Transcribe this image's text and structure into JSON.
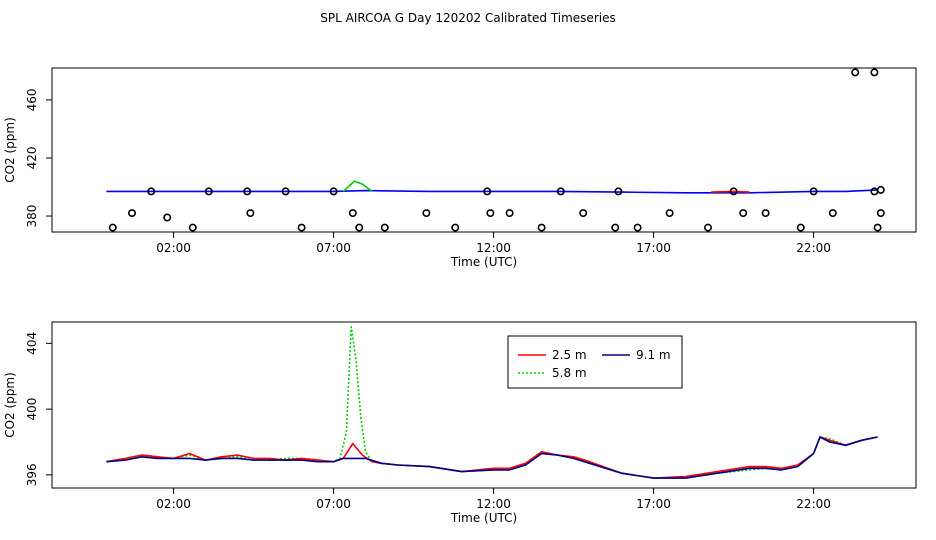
{
  "title": "SPL AIRCOA G  Day 120202  Calibrated Timeseries",
  "chart_data": [
    {
      "type": "line",
      "xlabel": "Time (UTC)",
      "ylabel": "CO2 (ppm)",
      "xlim": [
        -1.8,
        25.2
      ],
      "ylim": [
        369,
        482
      ],
      "x_ticks": [
        2,
        7,
        12,
        17,
        22
      ],
      "x_tick_labels": [
        "02:00",
        "07:00",
        "12:00",
        "17:00",
        "22:00"
      ],
      "y_ticks": [
        380,
        420,
        460
      ],
      "y_tick_labels": [
        "380",
        "420",
        "460"
      ],
      "grid": false,
      "series": [
        {
          "color": "#0000ff",
          "x": [
            -0.1,
            1.0,
            3.0,
            7.0,
            8.0,
            10.0,
            12.0,
            14.0,
            16.0,
            18.0,
            20.0,
            22.0,
            23.0,
            24.0
          ],
          "y": [
            397,
            397,
            397,
            397,
            397.5,
            397,
            397,
            397,
            396.5,
            396,
            396,
            397,
            397,
            398
          ]
        },
        {
          "color": "#00cc00",
          "x": [
            7.3,
            7.65,
            7.9,
            8.2
          ],
          "y": [
            397,
            404,
            402,
            397
          ]
        },
        {
          "color": "#ff0000",
          "x": [
            18.8,
            19.5,
            20.0
          ],
          "y": [
            396.5,
            397,
            396.5
          ]
        }
      ],
      "markers": {
        "shape": "open-circle",
        "color": "#000000",
        "x": [
          0.1,
          0.7,
          1.3,
          1.8,
          2.6,
          3.1,
          4.3,
          4.4,
          5.5,
          6.0,
          7.0,
          7.6,
          7.8,
          8.6,
          9.9,
          10.8,
          11.8,
          11.9,
          12.5,
          13.5,
          14.1,
          14.8,
          15.8,
          15.9,
          16.5,
          17.5,
          18.7,
          19.5,
          19.8,
          20.5,
          21.6,
          22.0,
          22.6,
          23.3,
          23.9,
          23.9,
          24.0,
          24.1,
          24.1
        ],
        "y": [
          372,
          382,
          397,
          379,
          372,
          397,
          397,
          382,
          397,
          372,
          397,
          382,
          372,
          372,
          382,
          372,
          397,
          382,
          382,
          372,
          397,
          382,
          372,
          397,
          372,
          382,
          372,
          397,
          382,
          382,
          372,
          397,
          382,
          479,
          479,
          397,
          372,
          382,
          398
        ]
      }
    },
    {
      "type": "line",
      "xlabel": "Time (UTC)",
      "ylabel": "CO2 (ppm)",
      "xlim": [
        -1.8,
        25.2
      ],
      "ylim": [
        395.2,
        405.3
      ],
      "x_ticks": [
        2,
        7,
        12,
        17,
        22
      ],
      "x_tick_labels": [
        "02:00",
        "07:00",
        "12:00",
        "17:00",
        "22:00"
      ],
      "y_ticks": [
        396,
        400,
        404
      ],
      "y_tick_labels": [
        "396",
        "400",
        "404"
      ],
      "grid": false,
      "legend": {
        "placement": "top-center",
        "entries": [
          {
            "label": "2.5 m",
            "color": "#ff0000",
            "style": "solid"
          },
          {
            "label": "9.1 m",
            "color": "#00008b",
            "style": "solid"
          },
          {
            "label": "5.8 m",
            "color": "#00cc00",
            "style": "dotted"
          }
        ]
      },
      "series": [
        {
          "name": "5.8 m",
          "color": "#00cc00",
          "dash": "2,2",
          "x": [
            -0.1,
            0.5,
            1.0,
            1.5,
            2.0,
            2.5,
            3.0,
            3.5,
            4.0,
            4.5,
            5.0,
            5.5,
            6.0,
            6.5,
            7.0,
            7.2,
            7.4,
            7.55,
            7.7,
            7.85,
            8.0,
            8.2,
            8.5,
            9.0,
            10.0,
            11.0,
            12.0,
            12.5,
            13.0,
            13.5,
            14.0,
            14.5,
            15.0,
            16.0,
            17.0,
            18.0,
            19.0,
            20.0,
            20.5,
            21.0,
            21.5,
            22.0,
            22.2,
            22.5,
            23.0,
            23.5,
            24.0
          ],
          "y": [
            396.8,
            397.0,
            397.2,
            397.1,
            397.0,
            397.2,
            396.9,
            397.0,
            397.1,
            397.0,
            396.9,
            397.0,
            397.0,
            396.9,
            396.8,
            397.0,
            398.6,
            405.0,
            403.0,
            399.5,
            397.4,
            396.8,
            396.7,
            396.6,
            396.5,
            396.2,
            396.3,
            396.4,
            396.7,
            397.3,
            397.2,
            397.0,
            396.7,
            396.1,
            395.8,
            395.8,
            396.1,
            396.3,
            396.4,
            396.3,
            396.5,
            397.3,
            398.3,
            398.2,
            397.8,
            398.1,
            398.3
          ]
        },
        {
          "name": "2.5 m",
          "color": "#ff0000",
          "x": [
            -0.1,
            0.5,
            1.0,
            1.5,
            2.0,
            2.5,
            3.0,
            3.5,
            4.0,
            4.5,
            5.0,
            5.5,
            6.0,
            6.5,
            7.0,
            7.3,
            7.6,
            7.9,
            8.2,
            8.5,
            9.0,
            10.0,
            11.0,
            12.0,
            12.5,
            13.0,
            13.5,
            14.0,
            14.5,
            15.0,
            16.0,
            17.0,
            18.0,
            19.0,
            20.0,
            20.5,
            21.0,
            21.5,
            22.0,
            22.2,
            22.5,
            23.0,
            23.5,
            24.0
          ],
          "y": [
            396.8,
            397.0,
            397.2,
            397.1,
            397.0,
            397.3,
            396.9,
            397.1,
            397.2,
            397.0,
            397.0,
            396.9,
            397.0,
            396.9,
            396.8,
            397.0,
            397.9,
            397.2,
            396.8,
            396.7,
            396.6,
            396.5,
            396.2,
            396.4,
            396.4,
            396.7,
            397.4,
            397.2,
            397.1,
            396.8,
            396.1,
            395.8,
            395.9,
            396.2,
            396.5,
            396.5,
            396.4,
            396.6,
            397.3,
            398.3,
            398.1,
            397.8,
            398.1,
            398.3
          ]
        },
        {
          "name": "9.1 m",
          "color": "#00008b",
          "x": [
            -0.1,
            0.5,
            1.0,
            1.5,
            2.0,
            2.5,
            3.0,
            3.5,
            4.0,
            4.5,
            5.0,
            5.5,
            6.0,
            6.5,
            7.0,
            7.3,
            7.6,
            8.0,
            8.5,
            9.0,
            10.0,
            11.0,
            12.0,
            12.5,
            13.0,
            13.5,
            14.0,
            14.5,
            15.0,
            16.0,
            17.0,
            18.0,
            19.0,
            20.0,
            20.5,
            21.0,
            21.5,
            22.0,
            22.2,
            22.5,
            23.0,
            23.5,
            24.0
          ],
          "y": [
            396.8,
            396.9,
            397.1,
            397.0,
            397.0,
            397.0,
            396.9,
            397.0,
            397.0,
            396.9,
            396.9,
            396.9,
            396.9,
            396.8,
            396.8,
            397.0,
            397.0,
            397.0,
            396.7,
            396.6,
            396.5,
            396.2,
            396.3,
            396.3,
            396.6,
            397.3,
            397.2,
            397.0,
            396.7,
            396.1,
            395.8,
            395.8,
            396.1,
            396.4,
            396.4,
            396.3,
            396.5,
            397.3,
            398.3,
            398.0,
            397.8,
            398.1,
            398.3
          ]
        }
      ]
    }
  ]
}
